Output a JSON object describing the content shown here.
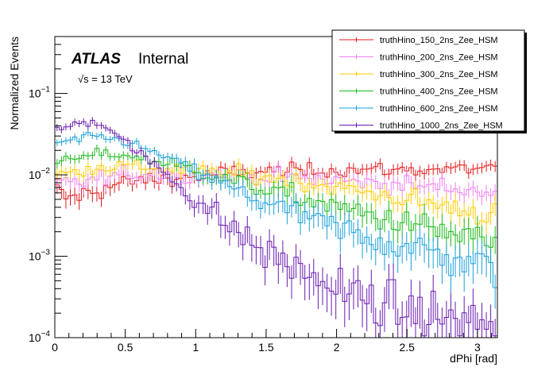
{
  "chart_data": {
    "type": "line",
    "xlabel": "dPhi [rad]",
    "ylabel": "Normalized Events",
    "xlim": [
      0,
      3.1416
    ],
    "ylim": [
      0.0001,
      0.5
    ],
    "yscale": "log",
    "x_ticks": [
      "0",
      "0.5",
      "1",
      "1.5",
      "2",
      "2.5",
      "3"
    ],
    "y_ticks": [
      {
        "base": "10",
        "exp": "−4",
        "value": 0.0001
      },
      {
        "base": "10",
        "exp": "−3",
        "value": 0.001
      },
      {
        "base": "10",
        "exp": "−2",
        "value": 0.01
      },
      {
        "base": "10",
        "exp": "−1",
        "value": 0.1
      }
    ],
    "grid": false,
    "legend_position": "top-right",
    "atlas_label": "ATLAS",
    "atlas_status": "Internal",
    "energy_label": "√s = 13 TeV",
    "bins": 100,
    "series": [
      {
        "name": "truthHino_150_2ns_Zee_HSM",
        "color": "#e41a1c",
        "x": [
          0,
          0.1,
          0.2,
          0.3,
          0.4,
          0.5,
          0.6,
          0.8,
          1.0,
          1.2,
          1.5,
          2.0,
          2.5,
          3.0,
          3.14
        ],
        "y": [
          0.0065,
          0.005,
          0.0058,
          0.0065,
          0.0072,
          0.008,
          0.0085,
          0.009,
          0.0095,
          0.0105,
          0.011,
          0.0115,
          0.0115,
          0.012,
          0.012
        ]
      },
      {
        "name": "truthHino_200_2ns_Zee_HSM",
        "color": "#ee82ee",
        "x": [
          0,
          0.1,
          0.2,
          0.3,
          0.4,
          0.5,
          0.6,
          0.8,
          1.0,
          1.2,
          1.5,
          2.0,
          2.5,
          3.0,
          3.14
        ],
        "y": [
          0.0075,
          0.0078,
          0.0082,
          0.0088,
          0.0095,
          0.01,
          0.0105,
          0.0105,
          0.01,
          0.0098,
          0.0095,
          0.0085,
          0.0075,
          0.0065,
          0.006
        ]
      },
      {
        "name": "truthHino_300_2ns_Zee_HSM",
        "color": "#ffcc00",
        "x": [
          0,
          0.1,
          0.2,
          0.3,
          0.4,
          0.5,
          0.6,
          0.8,
          1.0,
          1.2,
          1.5,
          2.0,
          2.5,
          3.0,
          3.14
        ],
        "y": [
          0.0098,
          0.0105,
          0.0115,
          0.0125,
          0.0128,
          0.0128,
          0.0125,
          0.012,
          0.011,
          0.0105,
          0.0095,
          0.007,
          0.005,
          0.0035,
          0.003
        ]
      },
      {
        "name": "truthHino_400_2ns_Zee_HSM",
        "color": "#1bb81b",
        "x": [
          0,
          0.1,
          0.2,
          0.3,
          0.4,
          0.5,
          0.6,
          0.8,
          1.0,
          1.2,
          1.5,
          2.0,
          2.5,
          3.0,
          3.14
        ],
        "y": [
          0.014,
          0.015,
          0.0165,
          0.018,
          0.018,
          0.0175,
          0.016,
          0.014,
          0.0115,
          0.009,
          0.0065,
          0.004,
          0.0025,
          0.0016,
          0.0014
        ]
      },
      {
        "name": "truthHino_600_2ns_Zee_HSM",
        "color": "#1a9fd8",
        "x": [
          0,
          0.1,
          0.2,
          0.3,
          0.4,
          0.5,
          0.6,
          0.8,
          1.0,
          1.2,
          1.5,
          2.0,
          2.5,
          3.0,
          3.14
        ],
        "y": [
          0.024,
          0.026,
          0.028,
          0.029,
          0.028,
          0.026,
          0.022,
          0.016,
          0.011,
          0.0075,
          0.0045,
          0.0022,
          0.0013,
          0.0008,
          0.0007
        ]
      },
      {
        "name": "truthHino_1000_2ns_Zee_HSM",
        "color": "#6a1bb0",
        "x": [
          0,
          0.1,
          0.2,
          0.3,
          0.35,
          0.4,
          0.5,
          0.6,
          0.8,
          1.0,
          1.2,
          1.5,
          2.0,
          2.5,
          3.0,
          3.14
        ],
        "y": [
          0.036,
          0.039,
          0.044,
          0.045,
          0.042,
          0.036,
          0.026,
          0.018,
          0.01,
          0.005,
          0.0026,
          0.0011,
          0.0004,
          0.0002,
          0.00015,
          0.00013
        ]
      }
    ]
  }
}
